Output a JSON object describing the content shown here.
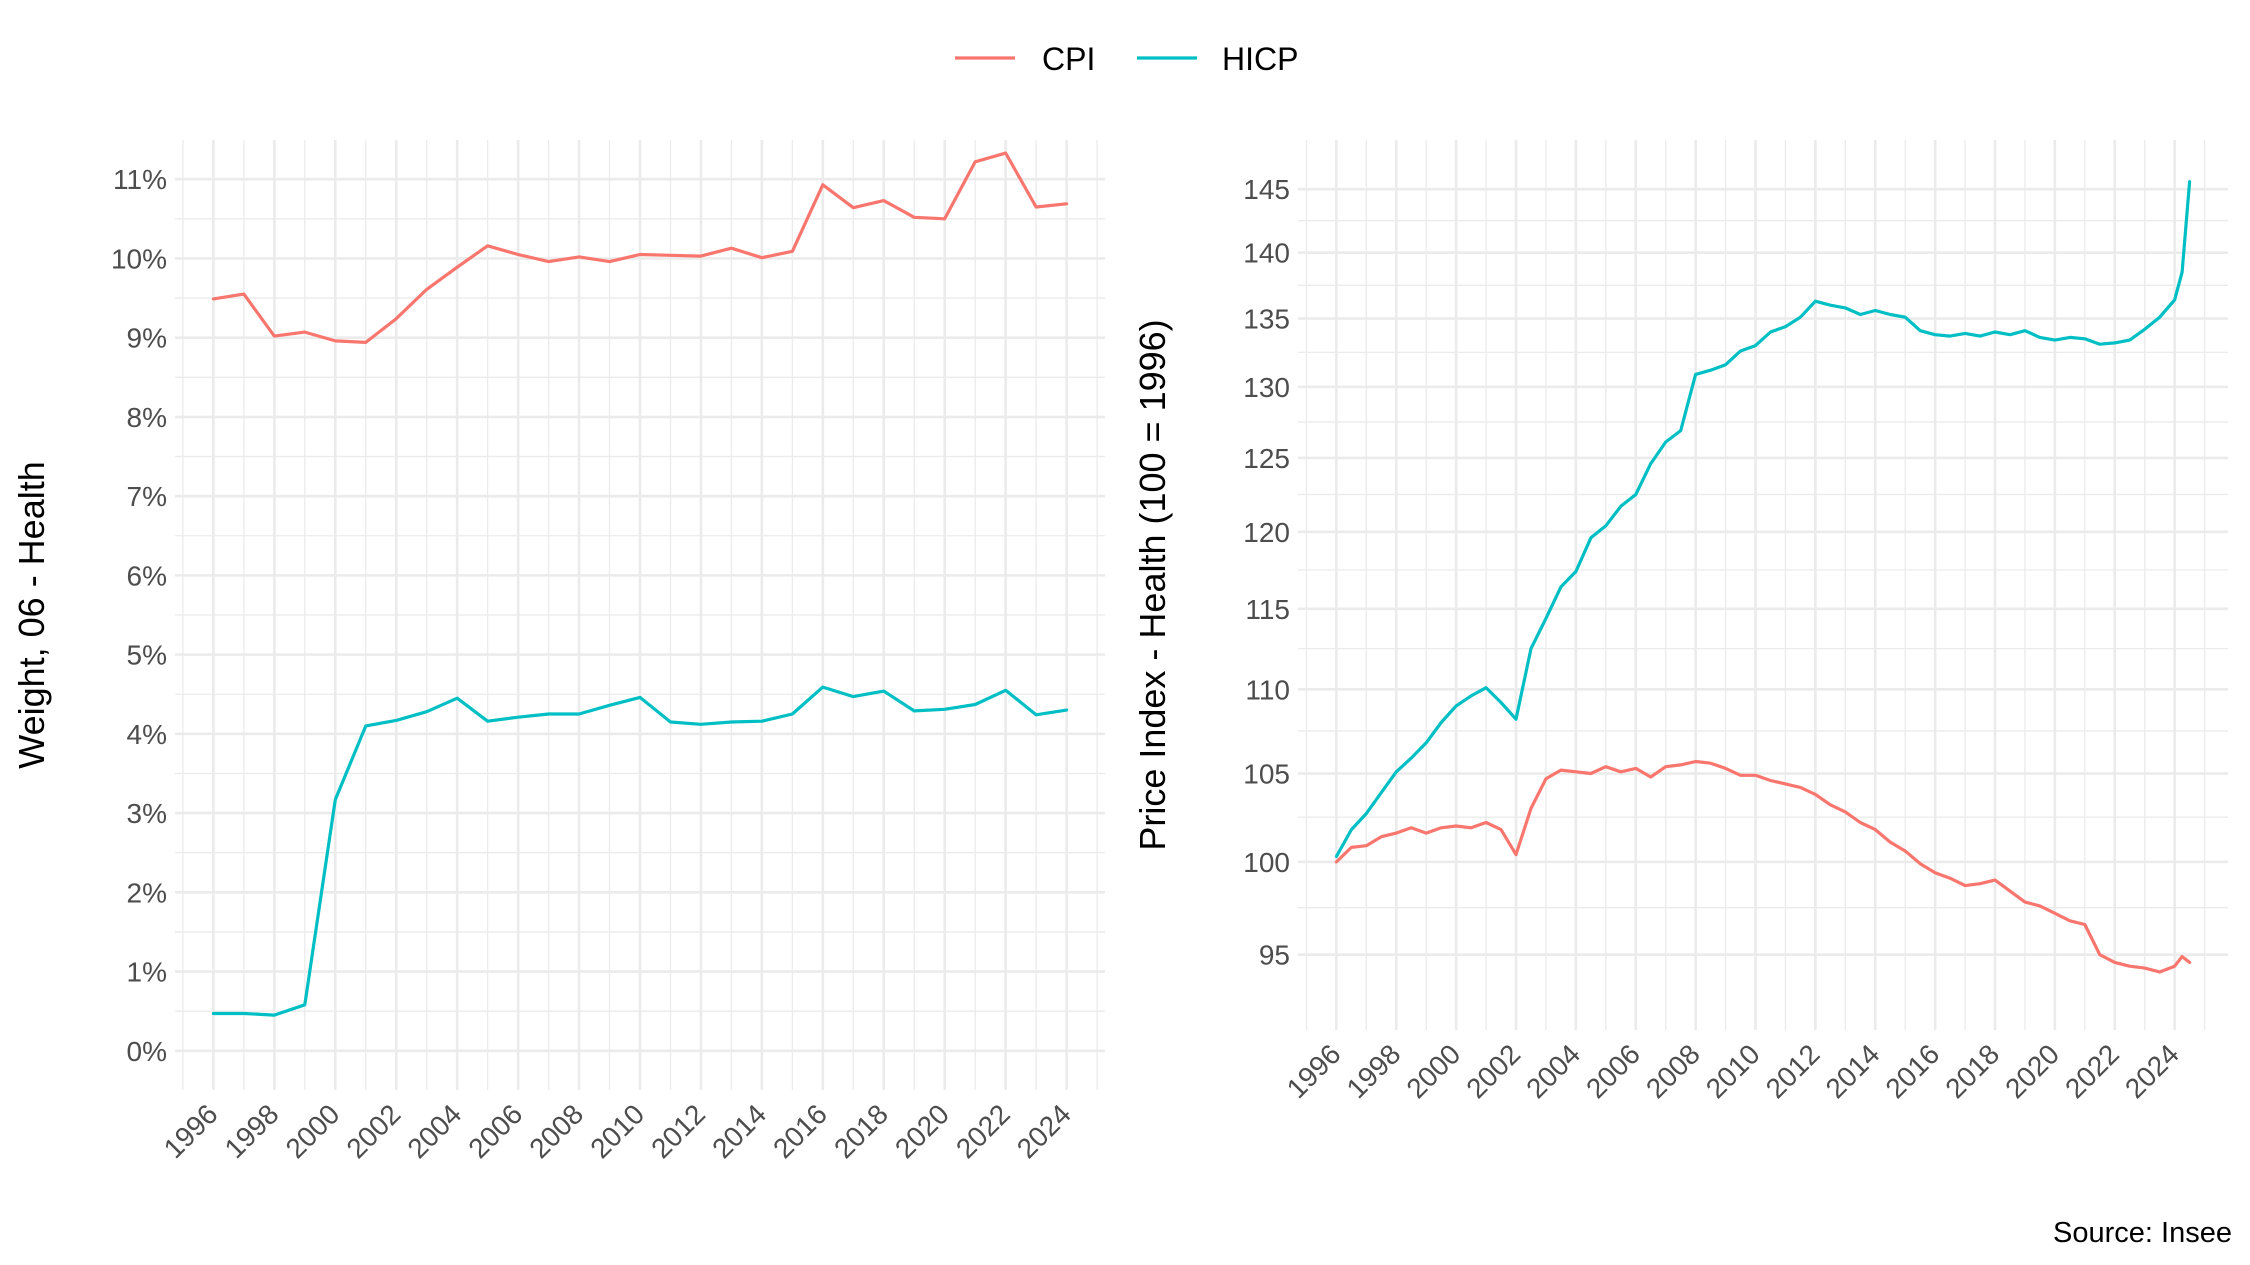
{
  "legend": {
    "items": [
      {
        "label": "CPI",
        "color": "#F8766D"
      },
      {
        "label": "HICP",
        "color": "#00BFC4"
      }
    ]
  },
  "caption": "Source: Insee",
  "chart_data": [
    {
      "type": "line",
      "ylabel": "Weight, 06 - Health",
      "xlabel": "",
      "y_format": "percent",
      "x": [
        1996,
        1997,
        1998,
        1999,
        2000,
        2001,
        2002,
        2003,
        2004,
        2005,
        2006,
        2007,
        2008,
        2009,
        2010,
        2011,
        2012,
        2013,
        2014,
        2015,
        2016,
        2017,
        2018,
        2019,
        2020,
        2021,
        2022,
        2023,
        2024
      ],
      "xlim": [
        1996,
        2024
      ],
      "ylim": [
        0,
        11
      ],
      "x_ticks": [
        1996,
        1998,
        2000,
        2002,
        2004,
        2006,
        2008,
        2010,
        2012,
        2014,
        2016,
        2018,
        2020,
        2022,
        2024
      ],
      "y_ticks": [
        0,
        1,
        2,
        3,
        4,
        5,
        6,
        7,
        8,
        9,
        10,
        11
      ],
      "series": [
        {
          "name": "CPI",
          "color": "#F8766D",
          "values": [
            9.49,
            9.55,
            9.02,
            9.07,
            8.96,
            8.94,
            9.24,
            9.61,
            9.89,
            10.16,
            10.05,
            9.96,
            10.02,
            9.96,
            10.05,
            10.04,
            10.03,
            10.13,
            10.01,
            10.09,
            10.93,
            10.64,
            10.73,
            10.52,
            10.5,
            11.22,
            11.33,
            10.65,
            10.69
          ]
        },
        {
          "name": "HICP",
          "color": "#00BFC4",
          "values": [
            0.47,
            0.47,
            0.45,
            0.58,
            3.17,
            4.1,
            4.17,
            4.28,
            4.45,
            4.16,
            4.21,
            4.25,
            4.25,
            4.36,
            4.46,
            4.15,
            4.12,
            4.15,
            4.16,
            4.25,
            4.59,
            4.47,
            4.54,
            4.29,
            4.31,
            4.37,
            4.55,
            4.24,
            4.3
          ]
        }
      ],
      "grid": true
    },
    {
      "type": "line",
      "ylabel": "Price Index - Health (100 = 1996)",
      "xlabel": "",
      "y_scale": "log",
      "x": [
        1996.0,
        1996.5,
        1997.0,
        1997.5,
        1998.0,
        1998.5,
        1999.0,
        1999.5,
        2000.0,
        2000.5,
        2001.0,
        2001.5,
        2002.0,
        2002.5,
        2003.0,
        2003.5,
        2004.0,
        2004.5,
        2005.0,
        2005.5,
        2006.0,
        2006.5,
        2007.0,
        2007.5,
        2008.0,
        2008.5,
        2009.0,
        2009.5,
        2010.0,
        2010.5,
        2011.0,
        2011.5,
        2012.0,
        2012.5,
        2013.0,
        2013.5,
        2014.0,
        2014.5,
        2015.0,
        2015.5,
        2016.0,
        2016.5,
        2017.0,
        2017.5,
        2018.0,
        2018.5,
        2019.0,
        2019.5,
        2020.0,
        2020.5,
        2021.0,
        2021.5,
        2022.0,
        2022.5,
        2023.0,
        2023.5,
        2024.0,
        2024.25,
        2024.5
      ],
      "xlim": [
        1996,
        2024.5
      ],
      "ylim": [
        93,
        146
      ],
      "x_ticks": [
        1996,
        1998,
        2000,
        2002,
        2004,
        2006,
        2008,
        2010,
        2012,
        2014,
        2016,
        2018,
        2020,
        2022,
        2024
      ],
      "y_ticks": [
        95,
        100,
        105,
        110,
        115,
        120,
        125,
        130,
        135,
        140,
        145
      ],
      "series": [
        {
          "name": "CPI",
          "color": "#F8766D",
          "values": [
            100.0,
            100.8,
            100.9,
            101.4,
            101.6,
            101.9,
            101.6,
            101.9,
            102.0,
            101.9,
            102.2,
            101.8,
            100.4,
            103.0,
            104.7,
            105.2,
            105.1,
            105.0,
            105.4,
            105.1,
            105.3,
            104.8,
            105.4,
            105.5,
            105.7,
            105.6,
            105.3,
            104.9,
            104.9,
            104.6,
            104.4,
            104.2,
            103.8,
            103.2,
            102.8,
            102.2,
            101.8,
            101.1,
            100.6,
            99.9,
            99.4,
            99.1,
            98.7,
            98.8,
            99.0,
            98.4,
            97.8,
            97.6,
            97.2,
            96.8,
            96.6,
            95.0,
            94.6,
            94.4,
            94.3,
            94.1,
            94.4,
            94.9,
            94.6
          ]
        },
        {
          "name": "HICP",
          "color": "#00BFC4",
          "values": [
            100.3,
            101.8,
            102.7,
            103.9,
            105.1,
            105.9,
            106.8,
            108.0,
            109.0,
            109.6,
            110.1,
            109.2,
            108.2,
            112.5,
            114.4,
            116.4,
            117.4,
            119.6,
            120.4,
            121.7,
            122.5,
            124.6,
            126.1,
            126.9,
            130.9,
            131.2,
            131.6,
            132.6,
            133.0,
            134.0,
            134.4,
            135.1,
            136.3,
            136.0,
            135.8,
            135.3,
            135.6,
            135.3,
            135.1,
            134.1,
            133.8,
            133.7,
            133.9,
            133.7,
            134.0,
            133.8,
            134.1,
            133.6,
            133.4,
            133.6,
            133.5,
            133.1,
            133.2,
            133.4,
            134.2,
            135.1,
            136.4,
            138.5,
            145.6
          ]
        }
      ],
      "grid": true
    }
  ]
}
